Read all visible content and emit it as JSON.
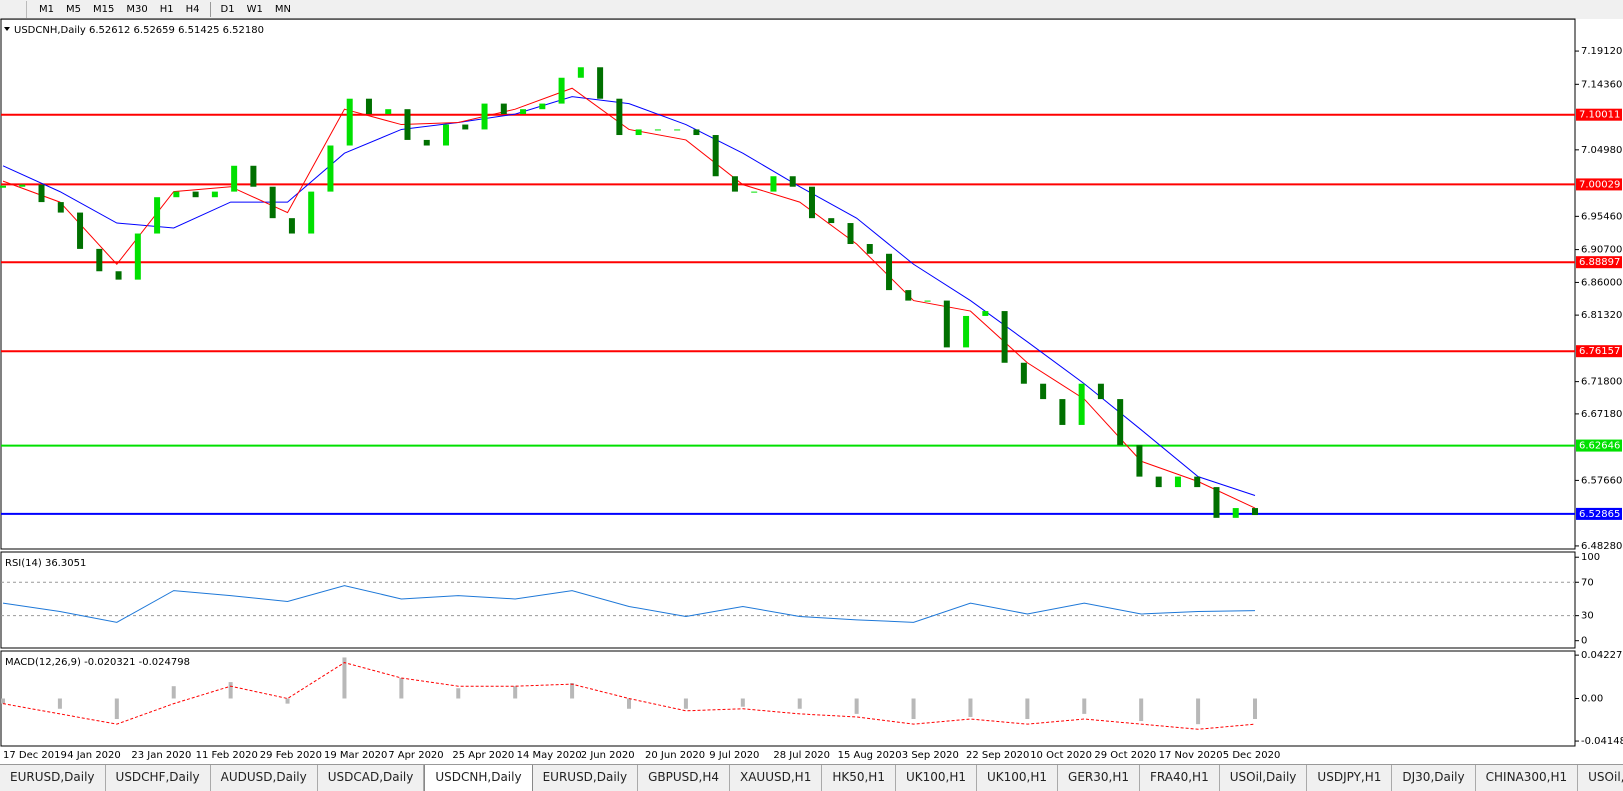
{
  "toolbar": {
    "timeframes": [
      "M1",
      "M5",
      "M15",
      "M30",
      "H1",
      "H4",
      "D1",
      "W1",
      "MN"
    ]
  },
  "chart_data": [
    {
      "type": "candlestick",
      "title": "USDCNH,Daily  6.52612 6.52659 6.51425 6.52180",
      "xticks": [
        "17 Dec 2019",
        "4 Jan 2020",
        "23 Jan 2020",
        "11 Feb 2020",
        "29 Feb 2020",
        "19 Mar 2020",
        "7 Apr 2020",
        "25 Apr 2020",
        "14 May 2020",
        "2 Jun 2020",
        "20 Jun 2020",
        "9 Jul 2020",
        "28 Jul 2020",
        "15 Aug 2020",
        "3 Sep 2020",
        "22 Sep 2020",
        "10 Oct 2020",
        "29 Oct 2020",
        "17 Nov 2020",
        "5 Dec 2020"
      ],
      "closes": [
        6.997,
        7.0,
        6.975,
        6.96,
        6.908,
        6.876,
        6.864,
        6.93,
        6.982,
        6.99,
        6.982,
        6.99,
        7.027,
        6.997,
        6.952,
        6.93,
        6.99,
        7.056,
        7.123,
        7.101,
        7.108,
        7.064,
        7.056,
        7.086,
        7.079,
        7.116,
        7.101,
        7.108,
        7.116,
        7.153,
        7.168,
        7.123,
        7.071,
        7.079,
        7.079,
        7.079,
        7.071,
        7.012,
        6.99,
        6.99,
        7.012,
        6.997,
        6.952,
        6.945,
        6.915,
        6.901,
        6.849,
        6.834,
        6.834,
        6.767,
        6.812,
        6.819,
        6.745,
        6.715,
        6.693,
        6.656,
        6.715,
        6.693,
        6.627,
        6.582,
        6.567,
        6.582,
        6.567,
        6.523,
        6.537,
        6.527
      ],
      "up_color": "#00e000",
      "down_color": "#007000",
      "lines": [
        {
          "color": "#0000ff",
          "values": [
            7.027,
            6.99,
            6.945,
            6.938,
            6.975,
            6.975,
            7.045,
            7.079,
            7.089,
            7.101,
            7.126,
            7.116,
            7.086,
            7.045,
            6.997,
            6.952,
            6.886,
            6.834,
            6.775,
            6.715,
            6.649,
            6.582,
            6.555
          ]
        },
        {
          "color": "#ff0000",
          "values": [
            7.005,
            6.975,
            6.886,
            6.99,
            6.997,
            6.96,
            7.108,
            7.086,
            7.089,
            7.108,
            7.138,
            7.079,
            7.064,
            7.0,
            6.975,
            6.915,
            6.834,
            6.819,
            6.745,
            6.693,
            6.604,
            6.575,
            6.537
          ]
        }
      ],
      "levels": [
        {
          "value": 7.10011,
          "color": "#ff0000"
        },
        {
          "value": 7.00029,
          "color": "#ff0000"
        },
        {
          "value": 6.88897,
          "color": "#ff0000"
        },
        {
          "value": 6.76157,
          "color": "#ff0000"
        },
        {
          "value": 6.62646,
          "color": "#00e000"
        },
        {
          "value": 6.52865,
          "color": "#0000ff"
        }
      ],
      "ylim": [
        6.4784,
        7.2371
      ],
      "yticks": [
        {
          "value": 7.1912,
          "label": "7.19120"
        },
        {
          "value": 7.1436,
          "label": "7.14360"
        },
        {
          "value": 7.0498,
          "label": "7.04980"
        },
        {
          "value": 6.9546,
          "label": "6.95460"
        },
        {
          "value": 6.907,
          "label": "6.90700"
        },
        {
          "value": 6.86,
          "label": "6.86000"
        },
        {
          "value": 6.8132,
          "label": "6.81320"
        },
        {
          "value": 6.718,
          "label": "6.71800"
        },
        {
          "value": 6.6718,
          "label": "6.67180"
        },
        {
          "value": 6.5766,
          "label": "6.57660"
        },
        {
          "value": 6.4828,
          "label": "6.48280"
        }
      ]
    },
    {
      "type": "line",
      "title": "RSI(14) 36.3051",
      "color": "#1e78d8",
      "values": [
        45,
        35,
        22,
        60,
        54,
        47,
        66,
        50,
        54,
        50,
        60,
        41,
        29,
        41,
        29,
        25,
        22,
        45,
        32,
        45,
        32,
        35,
        36
      ],
      "ylim": [
        -8.75,
        106.25
      ],
      "yticks": [
        100,
        70,
        30,
        0
      ],
      "levels": [
        70,
        30
      ]
    },
    {
      "type": "macd",
      "title": "MACD(12,26,9) -0.020321 -0.024798",
      "histogram": [
        -0.005,
        -0.01,
        -0.02,
        0.012,
        0.016,
        -0.005,
        0.04,
        0.02,
        0.01,
        0.012,
        0.015,
        -0.01,
        -0.01,
        -0.008,
        -0.01,
        -0.015,
        -0.02,
        -0.018,
        -0.02,
        -0.015,
        -0.022,
        -0.025,
        -0.02
      ],
      "signal": [
        -0.005,
        -0.015,
        -0.025,
        -0.005,
        0.012,
        0.0,
        0.035,
        0.02,
        0.012,
        0.012,
        0.014,
        0.0,
        -0.012,
        -0.01,
        -0.015,
        -0.018,
        -0.025,
        -0.02,
        -0.025,
        -0.02,
        -0.025,
        -0.03,
        -0.025
      ],
      "histogram_color": "#b8b8b8",
      "signal_color": "#ff0000",
      "ylim": [
        -0.0463,
        0.0463
      ],
      "yticks": [
        0.042275,
        {
          "value": 0,
          "label": "0.00"
        },
        -0.04148
      ]
    }
  ],
  "tabs": [
    {
      "label": "EURUSD,Daily"
    },
    {
      "label": "USDCHF,Daily"
    },
    {
      "label": "AUDUSD,Daily"
    },
    {
      "label": "USDCAD,Daily"
    },
    {
      "label": "USDCNH,Daily",
      "active": true
    },
    {
      "label": "EURUSD,Daily"
    },
    {
      "label": "GBPUSD,H4"
    },
    {
      "label": "XAUUSD,H1"
    },
    {
      "label": "HK50,H1"
    },
    {
      "label": "UK100,H1"
    },
    {
      "label": "UK100,H1"
    },
    {
      "label": "GER30,H1"
    },
    {
      "label": "FRA40,H1"
    },
    {
      "label": "USOil,Daily"
    },
    {
      "label": "USDJPY,H1"
    },
    {
      "label": "DJ30,Daily"
    },
    {
      "label": "CHINA300,H1"
    },
    {
      "label": "USOil,..."
    }
  ]
}
